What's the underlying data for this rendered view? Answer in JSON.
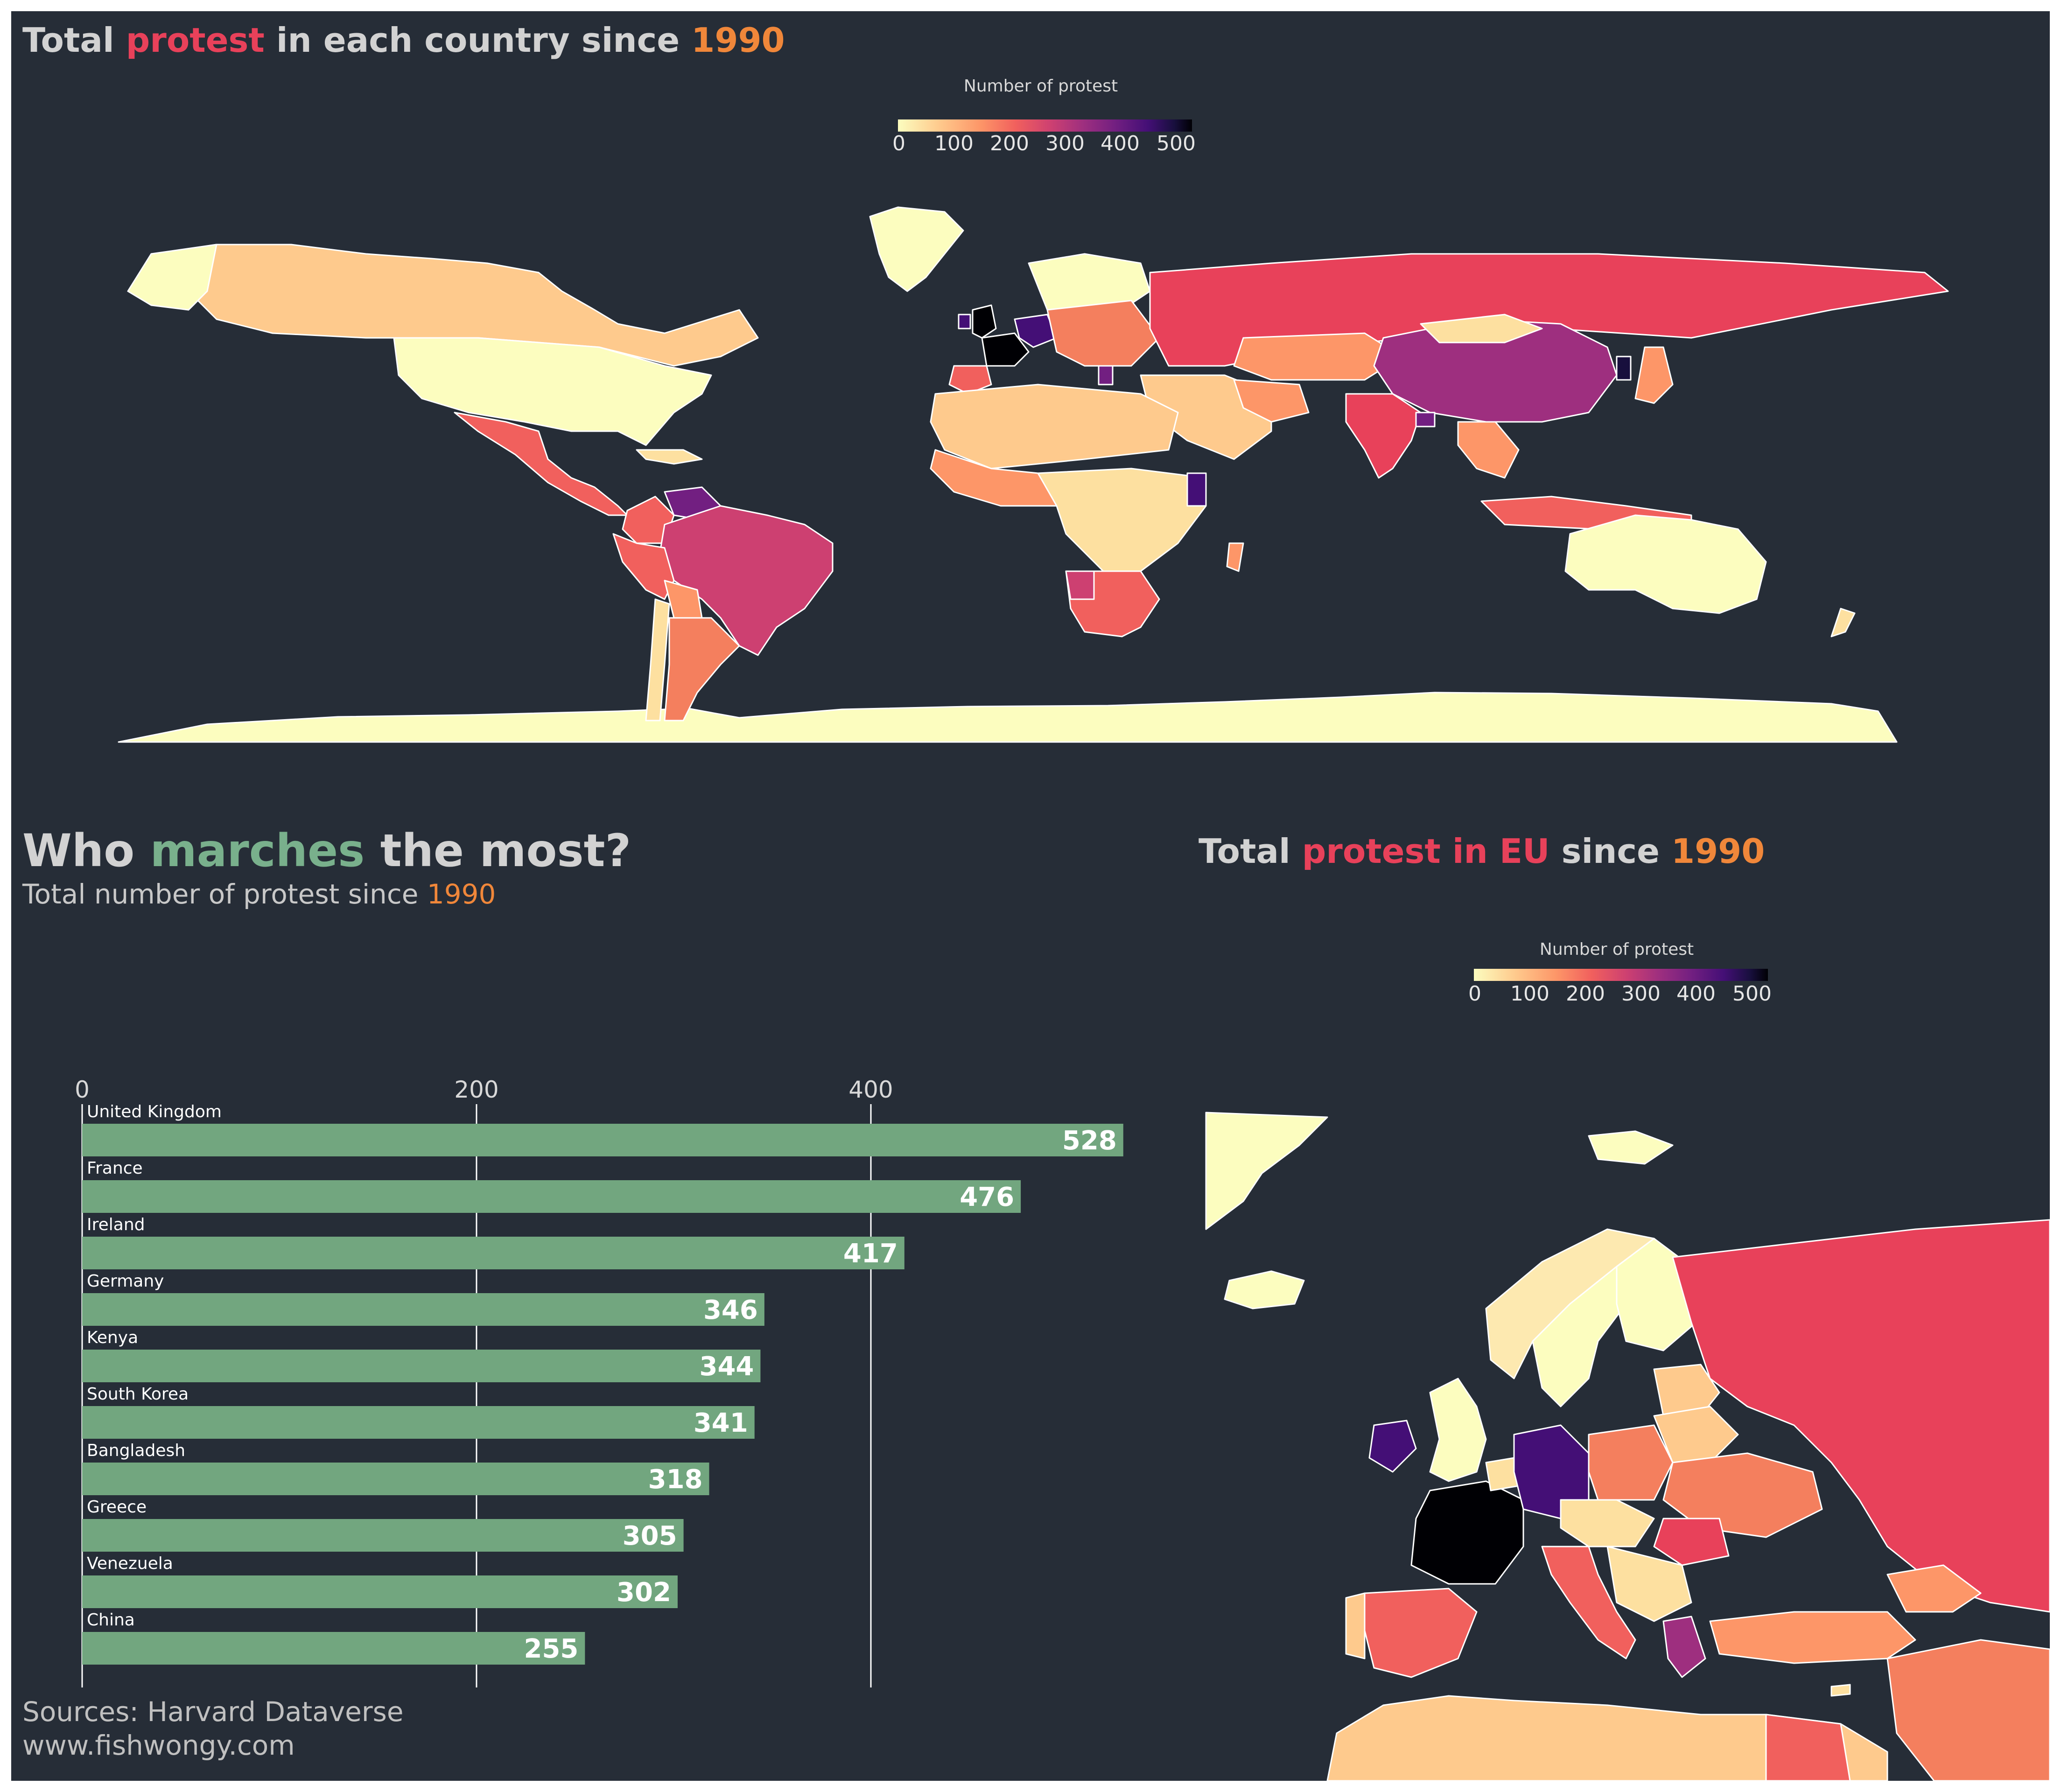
{
  "top_panel": {
    "title_parts": {
      "a": "Total ",
      "b": "protest",
      "c": " in each country since ",
      "d": "1990"
    },
    "legend": {
      "title": "Number of protest",
      "ticks": [
        "0",
        "100",
        "200",
        "300",
        "400",
        "500"
      ]
    }
  },
  "bar_panel": {
    "title_parts": {
      "a": "Who ",
      "b": "marches",
      "c": " the most?"
    },
    "subtitle_parts": {
      "a": "Total number of protest since ",
      "b": "1990"
    },
    "source_line1": "Sources: Harvard Dataverse",
    "source_line2": "www.fishwongy.com"
  },
  "eu_panel": {
    "title_parts": {
      "a": "Total ",
      "b": "protest in EU",
      "c": " since ",
      "d": "1990"
    },
    "legend": {
      "title": "Number of protest",
      "ticks": [
        "0",
        "100",
        "200",
        "300",
        "400",
        "500"
      ]
    }
  },
  "colors": {
    "panel_bg": "#262d37",
    "bar": "#72a67f",
    "accent_red": "#e8415a",
    "accent_orange": "#f0873a",
    "accent_green": "#79b08c"
  },
  "chart_data": [
    {
      "type": "bar",
      "orientation": "horizontal",
      "title": "Who marches the most?",
      "subtitle": "Total number of protest since 1990",
      "categories": [
        "United Kingdom",
        "France",
        "Ireland",
        "Germany",
        "Kenya",
        "South Korea",
        "Bangladesh",
        "Greece",
        "Venezuela",
        "China"
      ],
      "values": [
        528,
        476,
        417,
        346,
        344,
        341,
        318,
        305,
        302,
        255
      ],
      "xticks": [
        0,
        200,
        400
      ],
      "xlim": [
        0,
        540
      ],
      "grid": true,
      "data_labels": true
    }
  ]
}
